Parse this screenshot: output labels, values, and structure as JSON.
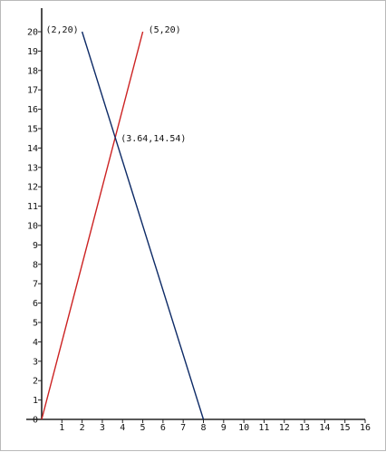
{
  "chart_data": {
    "type": "line",
    "xlim": [
      0,
      16
    ],
    "ylim": [
      0,
      20
    ],
    "x_ticks": [
      1,
      2,
      3,
      4,
      5,
      6,
      7,
      8,
      9,
      10,
      11,
      12,
      13,
      14,
      15,
      16
    ],
    "y_ticks": [
      0,
      1,
      2,
      3,
      4,
      5,
      6,
      7,
      8,
      9,
      10,
      11,
      12,
      13,
      14,
      15,
      16,
      17,
      18,
      19,
      20
    ],
    "grid": false,
    "series": [
      {
        "color": "#cc2222",
        "points": [
          [
            0,
            0
          ],
          [
            5,
            20
          ]
        ]
      },
      {
        "color": "#0d2a66",
        "points": [
          [
            2,
            20
          ],
          [
            8,
            0
          ]
        ]
      }
    ],
    "annotations": [
      {
        "text": "(2,20)",
        "x": 2,
        "y": 20,
        "anchor": "end"
      },
      {
        "text": "(5,20)",
        "x": 5,
        "y": 20,
        "anchor": "start"
      },
      {
        "text": "(3.64,14.54)",
        "x": 3.64,
        "y": 14.54,
        "anchor": "start"
      }
    ]
  }
}
